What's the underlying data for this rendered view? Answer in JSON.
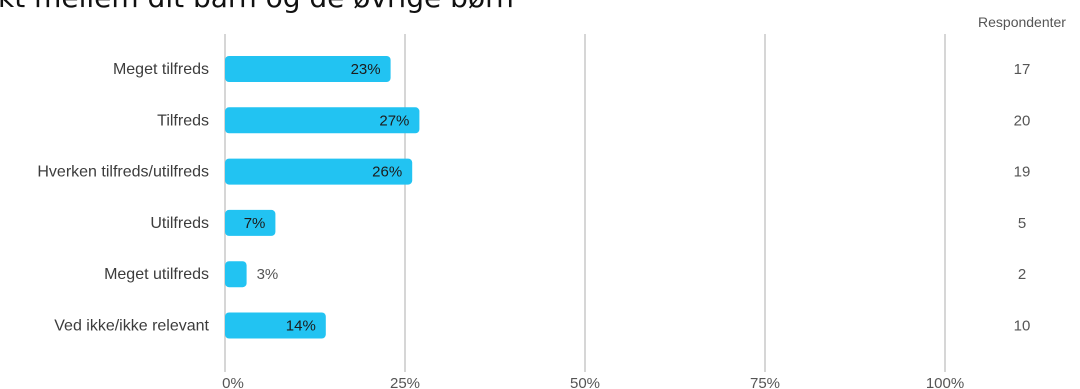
{
  "title": "kt mellem dit barn og de øvrige børn",
  "respondents_header": "Respondenter",
  "colors": {
    "bar": "#22c3f2",
    "grid": "#c9c9c9",
    "label_inside": "#1c1c1c",
    "label_outside": "#555555"
  },
  "chart_data": {
    "type": "bar",
    "orientation": "horizontal",
    "categories": [
      "Meget tilfreds",
      "Tilfreds",
      "Hverken tilfreds/utilfreds",
      "Utilfreds",
      "Meget utilfreds",
      "Ved ikke/ikke relevant"
    ],
    "values": [
      23,
      27,
      26,
      7,
      3,
      14
    ],
    "value_labels": [
      "23%",
      "27%",
      "26%",
      "7%",
      "3%",
      "14%"
    ],
    "respondents": [
      "17",
      "20",
      "19",
      "5",
      "2",
      "10"
    ],
    "xlim": [
      0,
      100
    ],
    "xticks": [
      0,
      25,
      50,
      75,
      100
    ],
    "xtick_labels": [
      "0%",
      "25%",
      "50%",
      "75%",
      "100%"
    ],
    "grid": true,
    "legend": "none"
  }
}
